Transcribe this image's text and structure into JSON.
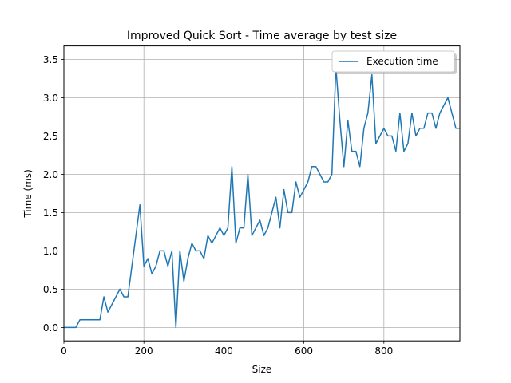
{
  "chart_data": {
    "type": "line",
    "title": "Improved Quick Sort - Time average by test size",
    "xlabel": "Size",
    "ylabel": "Time (ms)",
    "xlim": [
      0,
      990
    ],
    "ylim": [
      -0.175,
      3.675
    ],
    "xticks": [
      0,
      200,
      400,
      600,
      800
    ],
    "yticks": [
      0.0,
      0.5,
      1.0,
      1.5,
      2.0,
      2.5,
      3.0,
      3.5
    ],
    "xtick_labels": [
      "0",
      "200",
      "400",
      "600",
      "800"
    ],
    "ytick_labels": [
      "0.0",
      "0.5",
      "1.0",
      "1.5",
      "2.0",
      "2.5",
      "3.0",
      "3.5"
    ],
    "grid": true,
    "legend_position": "top-right",
    "series": [
      {
        "name": "Execution time",
        "color": "#1f77b4",
        "x": [
          0,
          10,
          20,
          30,
          40,
          50,
          60,
          70,
          80,
          90,
          100,
          110,
          120,
          130,
          140,
          150,
          160,
          170,
          180,
          190,
          200,
          210,
          220,
          230,
          240,
          250,
          260,
          270,
          280,
          290,
          300,
          310,
          320,
          330,
          340,
          350,
          360,
          370,
          380,
          390,
          400,
          410,
          420,
          430,
          440,
          450,
          460,
          470,
          480,
          490,
          500,
          510,
          520,
          530,
          540,
          550,
          560,
          570,
          580,
          590,
          600,
          610,
          620,
          630,
          640,
          650,
          660,
          670,
          680,
          690,
          700,
          710,
          720,
          730,
          740,
          750,
          760,
          770,
          780,
          790,
          800,
          810,
          820,
          830,
          840,
          850,
          860,
          870,
          880,
          890,
          900,
          910,
          920,
          930,
          940,
          950,
          960,
          970,
          980,
          990
        ],
        "y": [
          0.0,
          0.0,
          0.0,
          0.0,
          0.1,
          0.1,
          0.1,
          0.1,
          0.1,
          0.1,
          0.4,
          0.2,
          0.3,
          0.4,
          0.5,
          0.4,
          0.4,
          0.8,
          1.2,
          1.6,
          0.8,
          0.9,
          0.7,
          0.8,
          1.0,
          1.0,
          0.8,
          1.0,
          0.0,
          1.0,
          0.6,
          0.9,
          1.1,
          1.0,
          1.0,
          0.9,
          1.2,
          1.1,
          1.2,
          1.3,
          1.2,
          1.3,
          2.1,
          1.1,
          1.3,
          1.3,
          2.0,
          1.2,
          1.3,
          1.4,
          1.2,
          1.3,
          1.5,
          1.7,
          1.3,
          1.8,
          1.5,
          1.5,
          1.9,
          1.7,
          1.8,
          1.9,
          2.1,
          2.1,
          2.0,
          1.9,
          1.9,
          2.0,
          3.4,
          2.7,
          2.1,
          2.7,
          2.3,
          2.3,
          2.1,
          2.6,
          2.8,
          3.3,
          2.4,
          2.5,
          2.6,
          2.5,
          2.5,
          2.3,
          2.8,
          2.3,
          2.4,
          2.8,
          2.5,
          2.6,
          2.6,
          2.8,
          2.8,
          2.6,
          2.8,
          2.9,
          3.0,
          2.8,
          2.6,
          2.6
        ]
      }
    ]
  }
}
